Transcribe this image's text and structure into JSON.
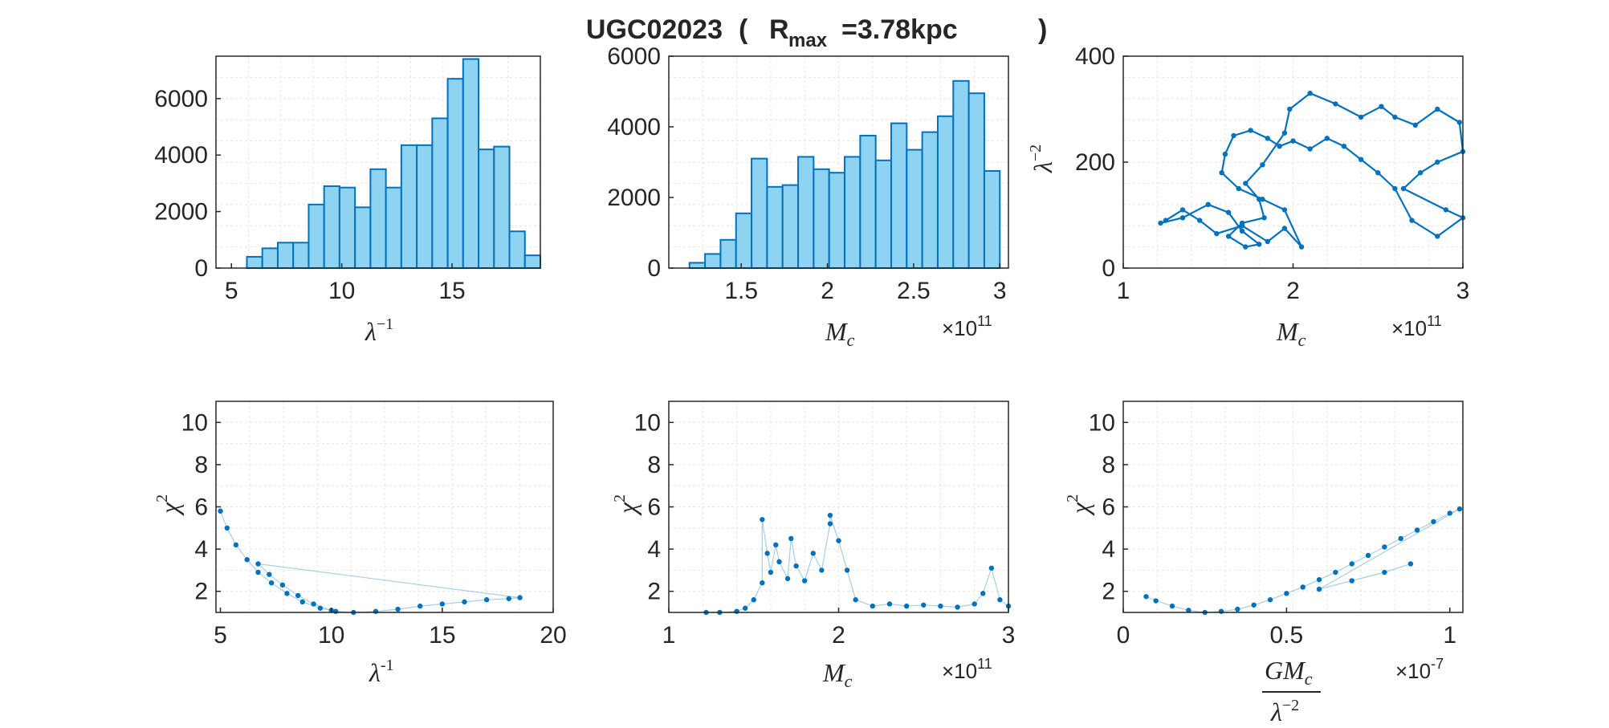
{
  "title": {
    "text": "UGC02023",
    "open": "(",
    "r": "R",
    "sub": "max",
    "value": "=3.78kpc",
    "close": ")"
  },
  "colors": {
    "bar_fill": "#8fd3f3",
    "bar_edge": "#0072bd",
    "points": "#0072bd",
    "grid": "#e6e6e6"
  },
  "chart_data": [
    {
      "type": "bar",
      "id": "hist-lambda",
      "xlabel": "λ⁻¹",
      "ylabel": "",
      "xlim": [
        4.3,
        19.0
      ],
      "ylim": [
        0,
        7500
      ],
      "xticks": [
        5,
        10,
        15
      ],
      "yticks": [
        0,
        2000,
        4000,
        6000
      ],
      "bin_edges": [
        5.0,
        5.7,
        6.4,
        7.1,
        7.8,
        8.5,
        9.2,
        9.9,
        10.6,
        11.3,
        12.0,
        12.7,
        13.4,
        14.1,
        14.8,
        15.5,
        16.2,
        16.9,
        17.6,
        18.3,
        19.0
      ],
      "values": [
        0,
        400,
        700,
        900,
        900,
        2250,
        2900,
        2850,
        2150,
        3500,
        2850,
        4350,
        4350,
        5300,
        6700,
        7400,
        4200,
        4300,
        1300,
        450
      ],
      "grid": true
    },
    {
      "type": "bar",
      "id": "hist-mc",
      "xlabel": "M_c",
      "ylabel": "",
      "x_exponent": "×10^11",
      "xlim": [
        1.08,
        3.05
      ],
      "ylim": [
        0,
        6000
      ],
      "xticks": [
        1.5,
        2,
        2.5,
        3
      ],
      "yticks": [
        0,
        2000,
        4000,
        6000
      ],
      "bin_edges": [
        1.2,
        1.29,
        1.38,
        1.47,
        1.56,
        1.65,
        1.74,
        1.83,
        1.92,
        2.01,
        2.1,
        2.19,
        2.28,
        2.37,
        2.46,
        2.55,
        2.64,
        2.73,
        2.82,
        2.91,
        3.0
      ],
      "values": [
        150,
        400,
        800,
        1550,
        3100,
        2300,
        2350,
        3150,
        2800,
        2700,
        3150,
        3750,
        3050,
        4100,
        3350,
        3850,
        4300,
        5300,
        4950,
        2750
      ],
      "grid": true
    },
    {
      "type": "scatter",
      "id": "trace-lambda2-mc",
      "xlabel": "M_c",
      "ylabel": "λ⁻²",
      "x_exponent": "×10^11",
      "xlim": [
        1,
        3
      ],
      "ylim": [
        0,
        400
      ],
      "xticks": [
        1,
        2,
        3
      ],
      "yticks": [
        0,
        200,
        400
      ],
      "x": [
        1.22,
        1.35,
        1.5,
        1.62,
        1.7,
        1.8,
        1.72,
        1.62,
        1.7,
        1.83,
        1.8,
        1.72,
        1.82,
        1.95,
        1.98,
        2.1,
        2.25,
        2.4,
        2.52,
        2.6,
        2.72,
        2.85,
        2.98,
        3.0,
        2.85,
        2.75,
        2.65,
        2.9,
        3.0,
        2.85,
        2.7,
        2.6,
        2.5,
        2.4,
        2.3,
        2.2,
        2.1,
        2.0,
        1.92,
        1.85,
        1.75,
        1.65,
        1.6,
        1.58,
        1.68,
        1.82,
        1.95,
        2.05,
        1.95,
        1.85,
        1.7,
        1.55,
        1.45,
        1.35,
        1.25
      ],
      "y": [
        85,
        95,
        120,
        105,
        70,
        45,
        40,
        60,
        85,
        95,
        130,
        160,
        195,
        255,
        300,
        330,
        310,
        285,
        305,
        285,
        270,
        300,
        275,
        220,
        200,
        180,
        150,
        110,
        95,
        60,
        90,
        150,
        180,
        205,
        230,
        245,
        225,
        240,
        230,
        245,
        260,
        250,
        215,
        180,
        150,
        130,
        110,
        40,
        75,
        50,
        80,
        65,
        90,
        110,
        90
      ],
      "grid": true
    },
    {
      "type": "scatter",
      "id": "chi2-lambda",
      "xlabel": "λ⁻¹",
      "ylabel": "χ²",
      "xlim": [
        4.8,
        20
      ],
      "ylim": [
        1,
        11
      ],
      "xticks": [
        5,
        10,
        15,
        20
      ],
      "yticks": [
        2,
        4,
        6,
        8,
        10
      ],
      "x": [
        5.0,
        5.3,
        5.7,
        6.2,
        6.7,
        7.3,
        8.0,
        8.7,
        9.5,
        10.2,
        11.0,
        12.0,
        13.0,
        14.0,
        15.0,
        16.0,
        17.0,
        18.0,
        18.5,
        6.7,
        7.2,
        7.8,
        8.5,
        9.2,
        10.0
      ],
      "y": [
        5.8,
        5.0,
        4.2,
        3.5,
        2.9,
        2.4,
        1.9,
        1.5,
        1.2,
        1.05,
        1.0,
        1.05,
        1.15,
        1.3,
        1.4,
        1.5,
        1.6,
        1.65,
        1.7,
        3.3,
        2.8,
        2.3,
        1.8,
        1.4,
        1.1
      ],
      "grid": true
    },
    {
      "type": "scatter",
      "id": "chi2-mc",
      "xlabel": "M_c",
      "ylabel": "χ²",
      "x_exponent": "×10^11",
      "xlim": [
        1,
        3
      ],
      "ylim": [
        1,
        11
      ],
      "xticks": [
        1,
        2,
        3
      ],
      "yticks": [
        2,
        4,
        6,
        8,
        10
      ],
      "x": [
        1.22,
        1.3,
        1.4,
        1.45,
        1.5,
        1.55,
        1.55,
        1.58,
        1.6,
        1.63,
        1.65,
        1.7,
        1.72,
        1.75,
        1.8,
        1.85,
        1.9,
        1.95,
        1.95,
        2.0,
        2.05,
        2.1,
        2.2,
        2.3,
        2.4,
        2.5,
        2.6,
        2.7,
        2.8,
        2.85,
        2.9,
        2.95,
        3.0
      ],
      "y": [
        1.0,
        1.0,
        1.05,
        1.2,
        1.6,
        2.4,
        5.4,
        3.8,
        2.9,
        4.2,
        3.4,
        2.6,
        4.5,
        3.2,
        2.5,
        3.8,
        3.0,
        5.2,
        5.6,
        4.4,
        3.0,
        1.6,
        1.3,
        1.4,
        1.3,
        1.35,
        1.3,
        1.25,
        1.4,
        1.9,
        3.1,
        1.6,
        1.3
      ],
      "grid": true
    },
    {
      "type": "scatter",
      "id": "chi2-gmc",
      "xlabel": "GM_c / λ⁻²",
      "ylabel": "χ²",
      "x_exponent": "×10^-7",
      "xlim": [
        0,
        1.04
      ],
      "ylim": [
        1,
        11
      ],
      "xticks": [
        0,
        0.5,
        1
      ],
      "yticks": [
        2,
        4,
        6,
        8,
        10
      ],
      "x": [
        0.07,
        0.1,
        0.15,
        0.2,
        0.25,
        0.3,
        0.35,
        0.4,
        0.45,
        0.5,
        0.55,
        0.6,
        0.65,
        0.7,
        0.75,
        0.8,
        0.85,
        0.9,
        0.95,
        1.0,
        1.03,
        0.6,
        0.7,
        0.8,
        0.88
      ],
      "y": [
        1.75,
        1.55,
        1.3,
        1.1,
        1.0,
        1.05,
        1.15,
        1.35,
        1.6,
        1.9,
        2.2,
        2.55,
        2.9,
        3.3,
        3.7,
        4.1,
        4.5,
        4.9,
        5.3,
        5.7,
        5.9,
        2.1,
        2.5,
        2.9,
        3.3
      ],
      "grid": true
    }
  ]
}
